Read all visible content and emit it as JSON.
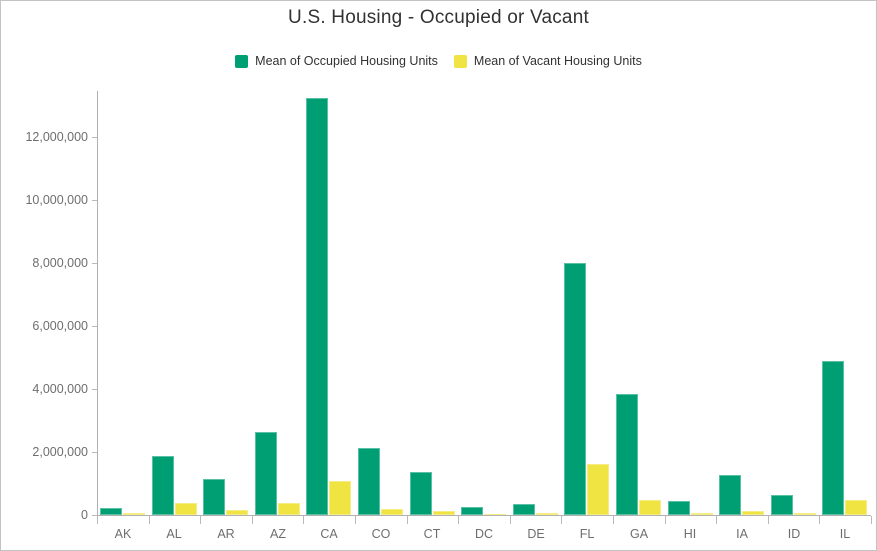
{
  "widget": {
    "name": "housing-bar-chart"
  },
  "chart_data": {
    "type": "bar",
    "title": "U.S. Housing - Occupied or Vacant",
    "categories": [
      "AK",
      "AL",
      "AR",
      "AZ",
      "CA",
      "CO",
      "CT",
      "DC",
      "DE",
      "FL",
      "GA",
      "HI",
      "IA",
      "ID",
      "IL"
    ],
    "series": [
      {
        "name": "Mean of Occupied Housing Units",
        "color": "#009e73",
        "values": [
          230000,
          1870000,
          1140000,
          2630000,
          13250000,
          2120000,
          1370000,
          255000,
          340000,
          7990000,
          3830000,
          455000,
          1270000,
          625000,
          4890000
        ]
      },
      {
        "name": "Mean of Vacant Housing Units",
        "color": "#f0e442",
        "values": [
          70000,
          370000,
          170000,
          390000,
          1080000,
          200000,
          115000,
          30000,
          70000,
          1630000,
          465000,
          73000,
          130000,
          55000,
          465000
        ]
      }
    ],
    "xlabel": "",
    "ylabel": "",
    "ylim": [
      0,
      13400000
    ],
    "yticks": [
      0,
      2000000,
      4000000,
      6000000,
      8000000,
      10000000,
      12000000
    ],
    "ytick_labels": [
      "0",
      "2,000,000",
      "4,000,000",
      "6,000,000",
      "8,000,000",
      "10,000,000",
      "12,000,000"
    ],
    "grid": false,
    "legend_position": "top"
  },
  "colors": {
    "title_text": "#323232",
    "legend_text": "#323232",
    "axis_line": "#b1b1b1",
    "tick_label": "#6e6e6e",
    "widget_border": "#c3c3c3",
    "background": "#ffffff"
  }
}
